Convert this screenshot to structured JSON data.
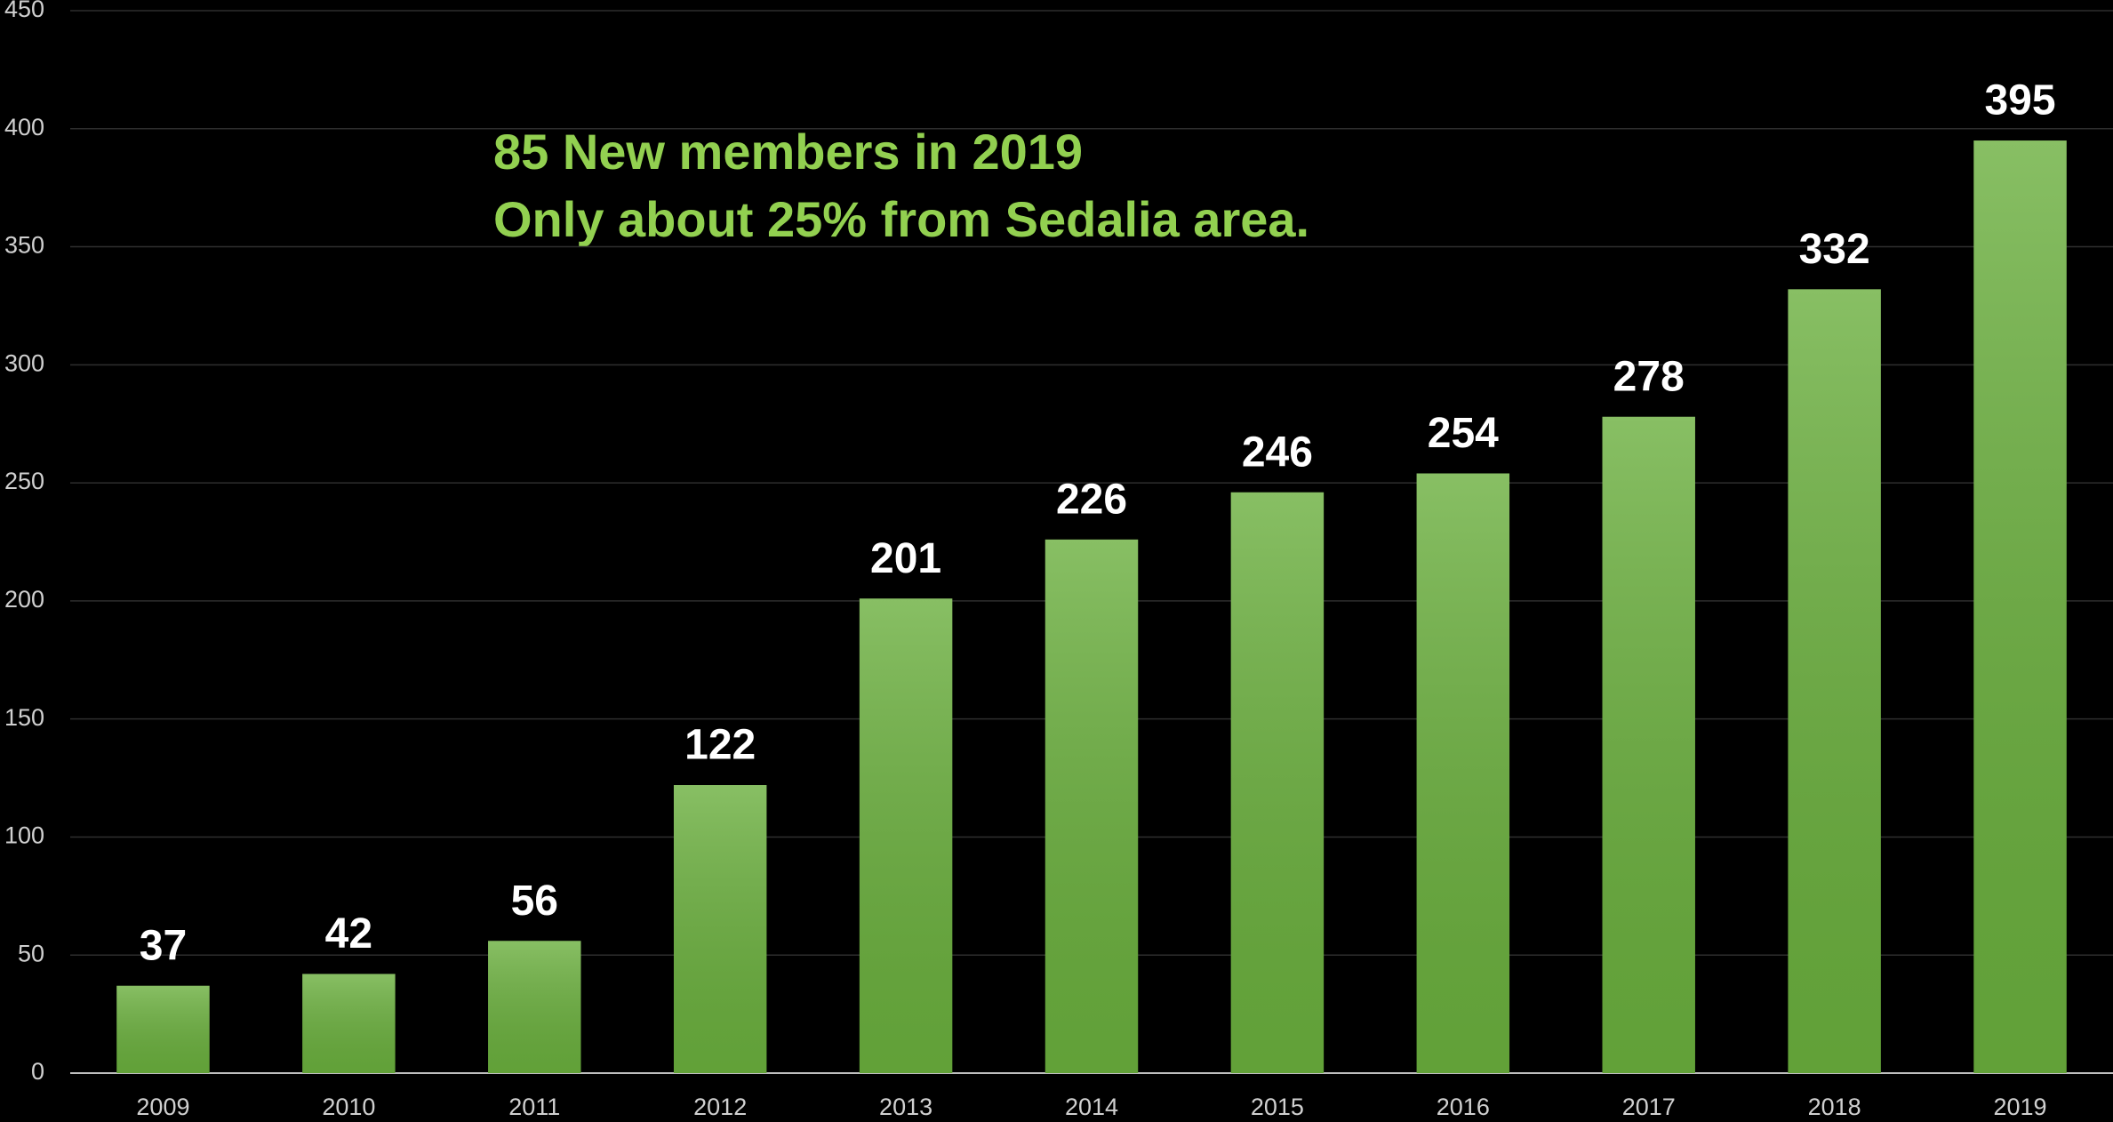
{
  "chart_data": {
    "type": "bar",
    "annotations": [
      "85 New members in 2019",
      "Only about 25% from Sedalia area."
    ],
    "categories": [
      "2009",
      "2010",
      "2011",
      "2012",
      "2013",
      "2014",
      "2015",
      "2016",
      "2017",
      "2018",
      "2019"
    ],
    "values": [
      37,
      42,
      56,
      122,
      201,
      226,
      246,
      254,
      278,
      332,
      395
    ],
    "color": "#6aaf3d",
    "ylim": [
      0,
      450
    ],
    "yticks": [
      0,
      50,
      100,
      150,
      200,
      250,
      300,
      350,
      400,
      450
    ],
    "grid": true
  }
}
